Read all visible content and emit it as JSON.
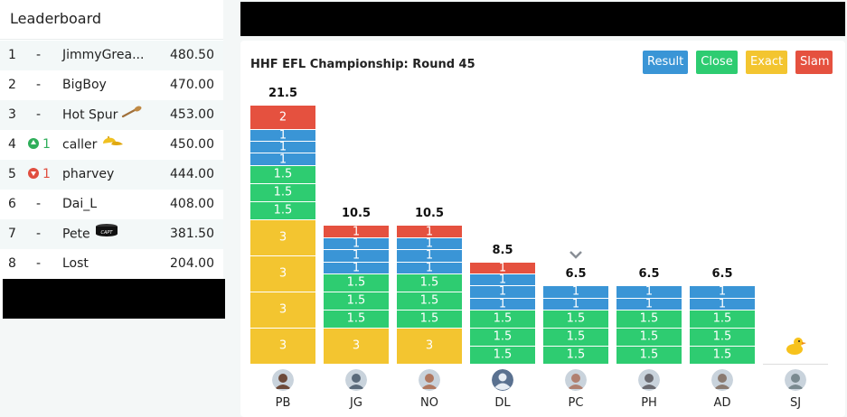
{
  "leaderboard": {
    "title": "Leaderboard",
    "rows": [
      {
        "rank": "1",
        "move": "-",
        "name": "JimmyGrea...",
        "score": "480.50",
        "badge": ""
      },
      {
        "rank": "2",
        "move": "-",
        "name": "BigBoy",
        "score": "470.00",
        "badge": ""
      },
      {
        "rank": "3",
        "move": "-",
        "name": "Hot Spur",
        "score": "453.00",
        "badge": "wooden-spoon-icon"
      },
      {
        "rank": "4",
        "move": "1",
        "name": "caller",
        "score": "450.00",
        "badge": "cap-icon",
        "dir": "up"
      },
      {
        "rank": "5",
        "move": "1",
        "name": "pharvey",
        "score": "444.00",
        "badge": "",
        "dir": "down"
      },
      {
        "rank": "6",
        "move": "-",
        "name": "Dai_L",
        "score": "408.00",
        "badge": ""
      },
      {
        "rank": "7",
        "move": "-",
        "name": "Pete",
        "score": "381.50",
        "badge": "captain-armband-icon"
      },
      {
        "rank": "8",
        "move": "-",
        "name": "Lost",
        "score": "204.00",
        "badge": ""
      }
    ]
  },
  "toolbar": {
    "result_label": "Result",
    "close_label": "Close",
    "exact_label": "Exact",
    "slam_label": "Slam"
  },
  "colors": {
    "result": "#3a95d6",
    "close": "#2ecc71",
    "exact": "#f3c530",
    "slam": "#e5513f"
  },
  "chart_data": {
    "type": "bar",
    "title": "HHF EFL Championship: Round 45",
    "categories": [
      "PB",
      "JG",
      "NO",
      "DL",
      "PC",
      "PH",
      "AD",
      "SJ"
    ],
    "totals": [
      "21.5",
      "10.5",
      "10.5",
      "8.5",
      "6.5",
      "6.5",
      "6.5",
      ""
    ],
    "stack_order": "bottom-to-top",
    "series": [
      {
        "name": "Exact",
        "values": [
          12,
          3,
          3,
          0,
          0,
          0,
          0,
          0
        ]
      },
      {
        "name": "Close",
        "values": [
          4.5,
          4.5,
          4.5,
          4.5,
          4.5,
          4.5,
          4.5,
          0
        ]
      },
      {
        "name": "Result",
        "values": [
          3,
          3,
          3,
          3,
          2,
          2,
          2,
          0
        ]
      },
      {
        "name": "Slam",
        "values": [
          2,
          1,
          1,
          1,
          0,
          0,
          0,
          0
        ]
      }
    ],
    "segments": [
      [
        "3",
        "3",
        "3",
        "3",
        "1.5",
        "1.5",
        "1.5",
        "1",
        "1",
        "1",
        "2"
      ],
      [
        "3",
        "1.5",
        "1.5",
        "1.5",
        "1",
        "1",
        "1",
        "1"
      ],
      [
        "3",
        "1.5",
        "1.5",
        "1.5",
        "1",
        "1",
        "1",
        "1"
      ],
      [
        "1.5",
        "1.5",
        "1.5",
        "1",
        "1",
        "1",
        "1"
      ],
      [
        "1.5",
        "1.5",
        "1.5",
        "1",
        "1"
      ],
      [
        "1.5",
        "1.5",
        "1.5",
        "1",
        "1"
      ],
      [
        "1.5",
        "1.5",
        "1.5",
        "1",
        "1"
      ],
      []
    ],
    "segment_types": [
      [
        "exact",
        "exact",
        "exact",
        "exact",
        "close",
        "close",
        "close",
        "result",
        "result",
        "result",
        "slam"
      ],
      [
        "exact",
        "close",
        "close",
        "close",
        "result",
        "result",
        "result",
        "slam"
      ],
      [
        "exact",
        "close",
        "close",
        "close",
        "result",
        "result",
        "result",
        "slam"
      ],
      [
        "close",
        "close",
        "close",
        "result",
        "result",
        "result",
        "slam"
      ],
      [
        "close",
        "close",
        "close",
        "result",
        "result"
      ],
      [
        "close",
        "close",
        "close",
        "result",
        "result"
      ],
      [
        "close",
        "close",
        "close",
        "result",
        "result"
      ],
      []
    ],
    "markers": {
      "PC": "chevron-down-icon",
      "SJ": "rubber-duck-icon"
    }
  }
}
